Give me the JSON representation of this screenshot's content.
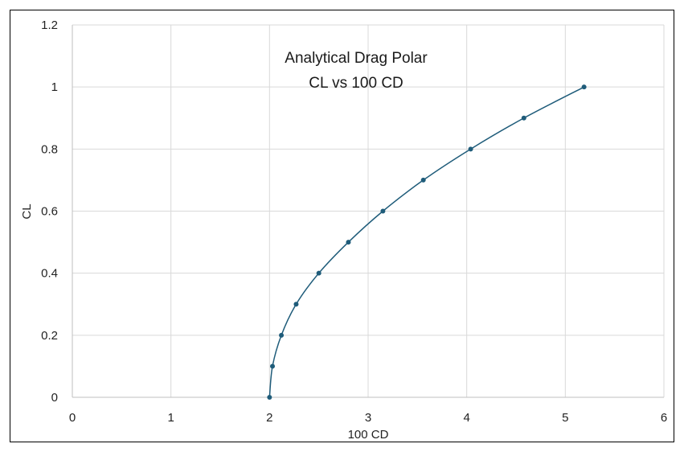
{
  "chart_data": {
    "type": "scatter",
    "title": "Analytical Drag Polar",
    "subtitle": "CL vs 100 CD",
    "xlabel": "100 CD",
    "ylabel": "CL",
    "xlim": [
      0,
      6
    ],
    "ylim": [
      0,
      1.2
    ],
    "x_ticks": [
      "0",
      "1",
      "2",
      "3",
      "4",
      "5",
      "6"
    ],
    "y_ticks": [
      "0",
      "0.2",
      "0.4",
      "0.6",
      "0.8",
      "1",
      "1.2"
    ],
    "grid": true,
    "legend": "none",
    "series": [
      {
        "x": [
          2.0,
          2.03,
          2.12,
          2.27,
          2.5,
          2.8,
          3.15,
          3.56,
          4.04,
          4.58,
          5.19
        ],
        "y": [
          0,
          0.1,
          0.2,
          0.3,
          0.4,
          0.5,
          0.6,
          0.7,
          0.8,
          0.9,
          1.0
        ]
      }
    ],
    "colors": {
      "series": "#1f5c7a",
      "grid": "#d9d9d9",
      "axis": "#bfbfbf"
    }
  }
}
